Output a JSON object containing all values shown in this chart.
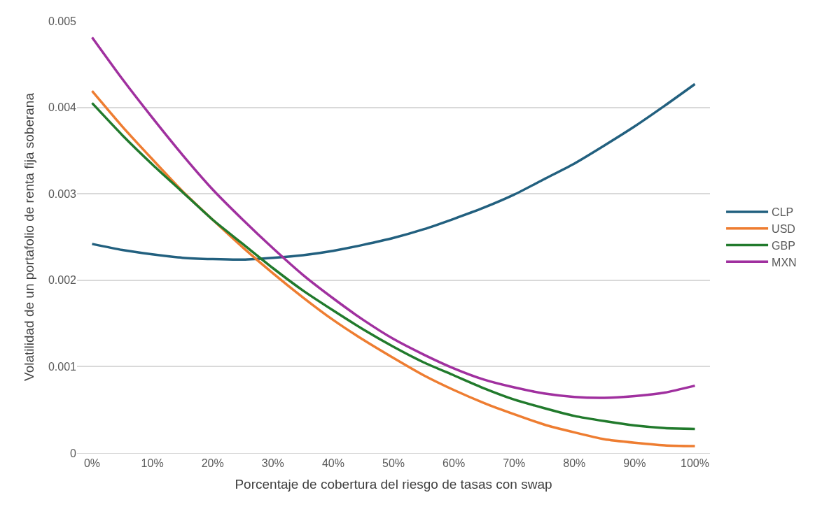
{
  "chart_data": {
    "type": "line",
    "xlabel": "Porcentaje de cobertura del riesgo de tasas con swap",
    "ylabel": "Volatilidad de un portafolio de renta fija soberana",
    "x": [
      0,
      5,
      10,
      15,
      20,
      25,
      30,
      35,
      40,
      45,
      50,
      55,
      60,
      65,
      70,
      75,
      80,
      85,
      90,
      95,
      100
    ],
    "series": [
      {
        "name": "CLP",
        "color": "#22607f",
        "values": [
          0.00242,
          0.00235,
          0.0023,
          0.00226,
          0.002245,
          0.00224,
          0.00226,
          0.00229,
          0.00234,
          0.00241,
          0.00249,
          0.00259,
          0.00271,
          0.00284,
          0.00299,
          0.00317,
          0.00335,
          0.00356,
          0.00378,
          0.00402,
          0.00427
        ]
      },
      {
        "name": "USD",
        "color": "#ee7d31",
        "values": [
          0.00419,
          0.00378,
          0.0034,
          0.00303,
          0.0027,
          0.00238,
          0.00208,
          0.0018,
          0.00154,
          0.00131,
          0.0011,
          0.0009,
          0.00073,
          0.00058,
          0.00045,
          0.00033,
          0.00024,
          0.00016,
          0.00012,
          9e-05,
          8e-05
        ]
      },
      {
        "name": "GBP",
        "color": "#217a2c",
        "values": [
          0.00405,
          0.00368,
          0.00334,
          0.00302,
          0.0027,
          0.00242,
          0.00214,
          0.00188,
          0.00165,
          0.00143,
          0.00123,
          0.00105,
          0.0009,
          0.00075,
          0.00062,
          0.00052,
          0.00043,
          0.00037,
          0.00032,
          0.00029,
          0.00028
        ]
      },
      {
        "name": "MXN",
        "color": "#a0309f",
        "values": [
          0.00481,
          0.00433,
          0.00388,
          0.00345,
          0.00305,
          0.0027,
          0.00237,
          0.00206,
          0.00179,
          0.00154,
          0.00132,
          0.00114,
          0.00098,
          0.00085,
          0.00076,
          0.00069,
          0.00065,
          0.00064,
          0.00066,
          0.0007,
          0.00078
        ]
      }
    ],
    "xlim": [
      -2.5,
      102.5
    ],
    "xticks": [
      {
        "value": 0,
        "label": "0%"
      },
      {
        "value": 10,
        "label": "10%"
      },
      {
        "value": 20,
        "label": "20%"
      },
      {
        "value": 30,
        "label": "30%"
      },
      {
        "value": 40,
        "label": "40%"
      },
      {
        "value": 50,
        "label": "50%"
      },
      {
        "value": 60,
        "label": "60%"
      },
      {
        "value": 70,
        "label": "70%"
      },
      {
        "value": 80,
        "label": "80%"
      },
      {
        "value": 90,
        "label": "90%"
      },
      {
        "value": 100,
        "label": "100%"
      }
    ],
    "ylim": [
      0,
      0.005
    ],
    "yticks": [
      0,
      0.001,
      0.002,
      0.003,
      0.004,
      0.005
    ],
    "grid": "y",
    "legend": "right",
    "marker": "none",
    "line_style": "solid"
  }
}
